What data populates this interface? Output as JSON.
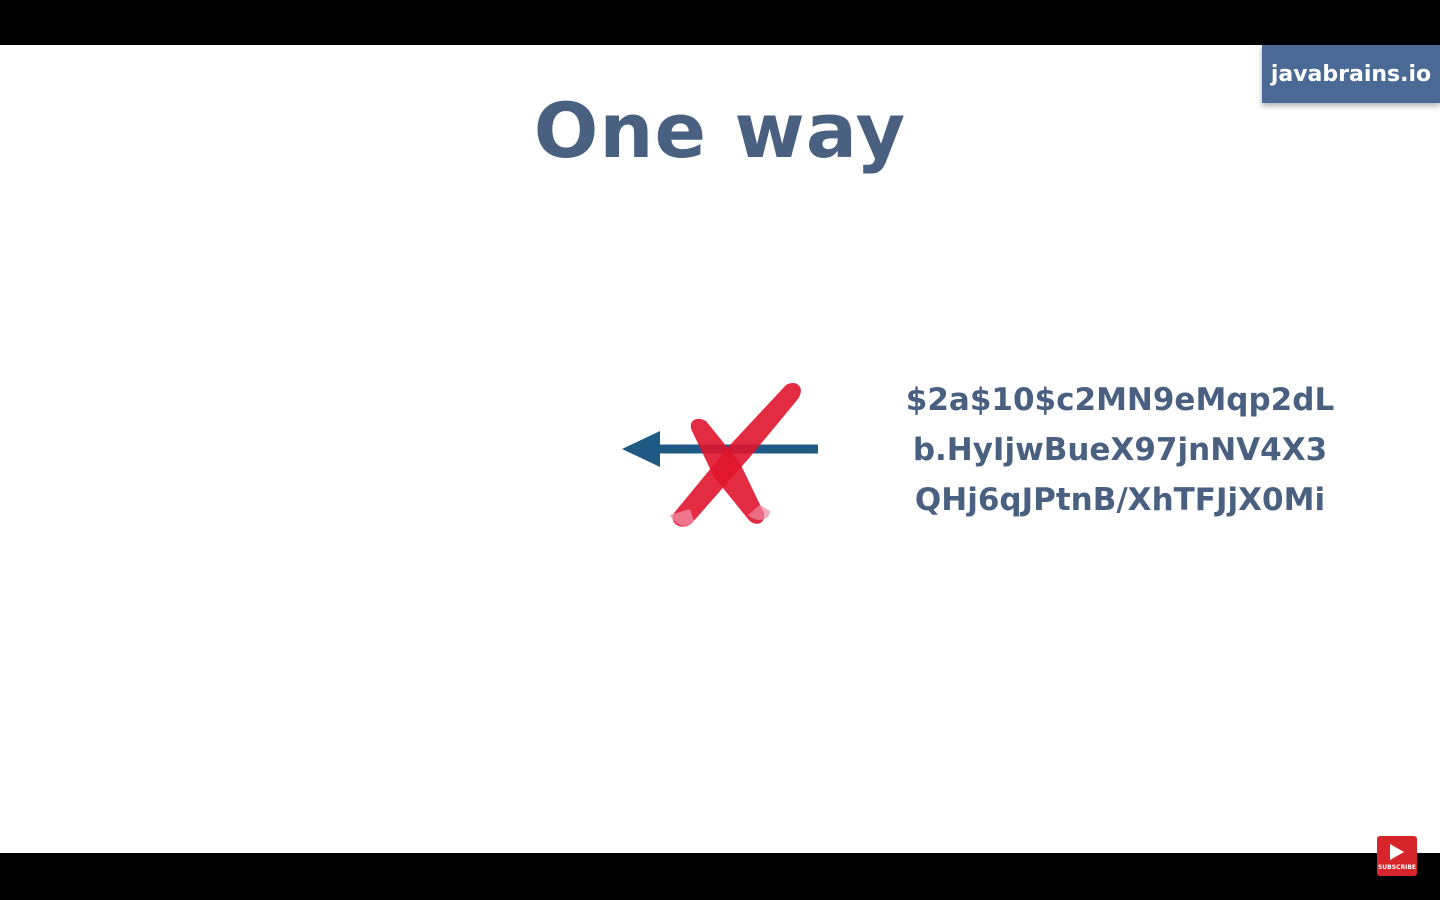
{
  "brand": {
    "label": "javabrains.io"
  },
  "slide": {
    "title": "One way",
    "hash_lines": [
      "$2a$10$c2MN9eMqp2dL",
      "b.HyIjwBueX97jnNV4X3",
      "QHj6qJPtnB/XhTFJjX0Mi"
    ]
  },
  "overlay": {
    "subscribe_label": "SUBSCRIBE"
  },
  "colors": {
    "title": "#4a6080",
    "arrow": "#1f5a84",
    "cross": "#e0142e",
    "badge": "#4a6a95"
  },
  "icons": {
    "arrow": "arrow-left-icon",
    "cross": "red-x-icon",
    "subscribe": "youtube-subscribe-icon"
  }
}
